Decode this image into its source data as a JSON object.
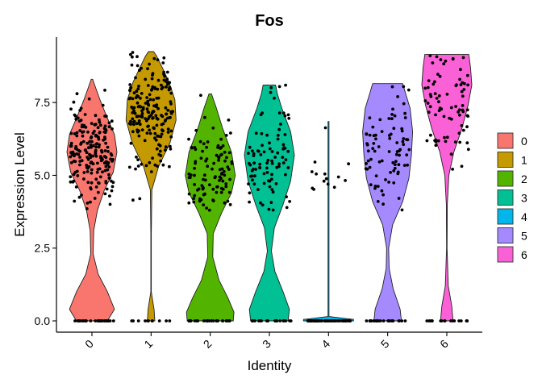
{
  "chart_data": {
    "type": "violin",
    "title": "Fos",
    "xlabel": "Identity",
    "ylabel": "Expression Level",
    "ylim": [
      0,
      9.25
    ],
    "yticks": [
      0.0,
      2.5,
      5.0,
      7.5
    ],
    "ytick_labels": [
      "0.0",
      "2.5",
      "5.0",
      "7.5"
    ],
    "categories": [
      "0",
      "1",
      "2",
      "3",
      "4",
      "5",
      "6"
    ],
    "legend": {
      "position": "right",
      "entries": [
        "0",
        "1",
        "2",
        "3",
        "4",
        "5",
        "6"
      ]
    },
    "grid": false,
    "colors": [
      "#F8766D",
      "#C49A00",
      "#53B400",
      "#00C094",
      "#00B6EB",
      "#A58AFF",
      "#FB61D7"
    ],
    "series": [
      {
        "category": "0",
        "max": 8.3,
        "density": [
          [
            0,
            0.62
          ],
          [
            0.4,
            0.9
          ],
          [
            1.0,
            0.62
          ],
          [
            1.6,
            0.25
          ],
          [
            2.3,
            0.05
          ],
          [
            3.1,
            0.07
          ],
          [
            3.8,
            0.22
          ],
          [
            4.5,
            0.5
          ],
          [
            5.1,
            0.85
          ],
          [
            5.8,
            1.0
          ],
          [
            6.4,
            0.9
          ],
          [
            7.0,
            0.6
          ],
          [
            7.6,
            0.32
          ],
          [
            8.0,
            0.15
          ],
          [
            8.3,
            0.03
          ]
        ],
        "n_points": 230,
        "frac_zero": 0.12,
        "median": 5.8,
        "spread": 0.85
      },
      {
        "category": "1",
        "max": 9.25,
        "density": [
          [
            0,
            0.15
          ],
          [
            0.4,
            0.12
          ],
          [
            1.0,
            0.01
          ],
          [
            3.0,
            0.01
          ],
          [
            4.5,
            0.03
          ],
          [
            5.3,
            0.3
          ],
          [
            6.1,
            0.75
          ],
          [
            6.9,
            1.0
          ],
          [
            7.6,
            0.95
          ],
          [
            8.2,
            0.72
          ],
          [
            8.7,
            0.45
          ],
          [
            9.1,
            0.22
          ],
          [
            9.25,
            0.1
          ]
        ],
        "n_points": 210,
        "frac_zero": 0.05,
        "median": 7.2,
        "spread": 0.9
      },
      {
        "category": "2",
        "max": 7.8,
        "density": [
          [
            0,
            0.92
          ],
          [
            0.3,
            0.95
          ],
          [
            0.8,
            0.7
          ],
          [
            1.4,
            0.35
          ],
          [
            2.2,
            0.1
          ],
          [
            3.0,
            0.12
          ],
          [
            3.7,
            0.45
          ],
          [
            4.4,
            0.85
          ],
          [
            5.0,
            1.0
          ],
          [
            5.8,
            0.85
          ],
          [
            6.6,
            0.5
          ],
          [
            7.3,
            0.25
          ],
          [
            7.8,
            0.05
          ]
        ],
        "n_points": 130,
        "frac_zero": 0.2,
        "median": 5.0,
        "spread": 0.9
      },
      {
        "category": "3",
        "max": 8.1,
        "density": [
          [
            0,
            0.75
          ],
          [
            0.4,
            0.8
          ],
          [
            1.0,
            0.55
          ],
          [
            1.7,
            0.22
          ],
          [
            2.4,
            0.08
          ],
          [
            3.2,
            0.2
          ],
          [
            4.0,
            0.55
          ],
          [
            4.8,
            0.85
          ],
          [
            5.7,
            1.0
          ],
          [
            6.5,
            0.85
          ],
          [
            7.3,
            0.5
          ],
          [
            7.8,
            0.32
          ],
          [
            8.1,
            0.25
          ]
        ],
        "n_points": 110,
        "frac_zero": 0.18,
        "median": 5.6,
        "spread": 1.0
      },
      {
        "category": "4",
        "max": 6.85,
        "density": [
          [
            0,
            1.0
          ],
          [
            0.05,
            1.0
          ],
          [
            0.15,
            0.02
          ],
          [
            6.85,
            0.02
          ]
        ],
        "n_points": 70,
        "frac_zero": 0.8,
        "median": 5.2,
        "spread": 0.6
      },
      {
        "category": "5",
        "max": 8.15,
        "density": [
          [
            0,
            0.55
          ],
          [
            0.4,
            0.5
          ],
          [
            1.1,
            0.22
          ],
          [
            1.8,
            0.06
          ],
          [
            2.5,
            0.04
          ],
          [
            3.3,
            0.2
          ],
          [
            4.1,
            0.6
          ],
          [
            4.9,
            0.85
          ],
          [
            5.7,
            0.95
          ],
          [
            6.5,
            1.0
          ],
          [
            7.3,
            0.9
          ],
          [
            7.8,
            0.72
          ],
          [
            8.15,
            0.6
          ]
        ],
        "n_points": 110,
        "frac_zero": 0.25,
        "median": 5.8,
        "spread": 1.0
      },
      {
        "category": "6",
        "max": 9.15,
        "density": [
          [
            0,
            0.25
          ],
          [
            0.5,
            0.2
          ],
          [
            1.2,
            0.06
          ],
          [
            2.5,
            0.01
          ],
          [
            4.0,
            0.02
          ],
          [
            5.0,
            0.08
          ],
          [
            5.8,
            0.28
          ],
          [
            6.6,
            0.6
          ],
          [
            7.4,
            0.85
          ],
          [
            8.1,
            1.0
          ],
          [
            8.7,
            0.95
          ],
          [
            9.15,
            0.88
          ]
        ],
        "n_points": 95,
        "frac_zero": 0.18,
        "median": 7.3,
        "spread": 1.0
      }
    ]
  }
}
